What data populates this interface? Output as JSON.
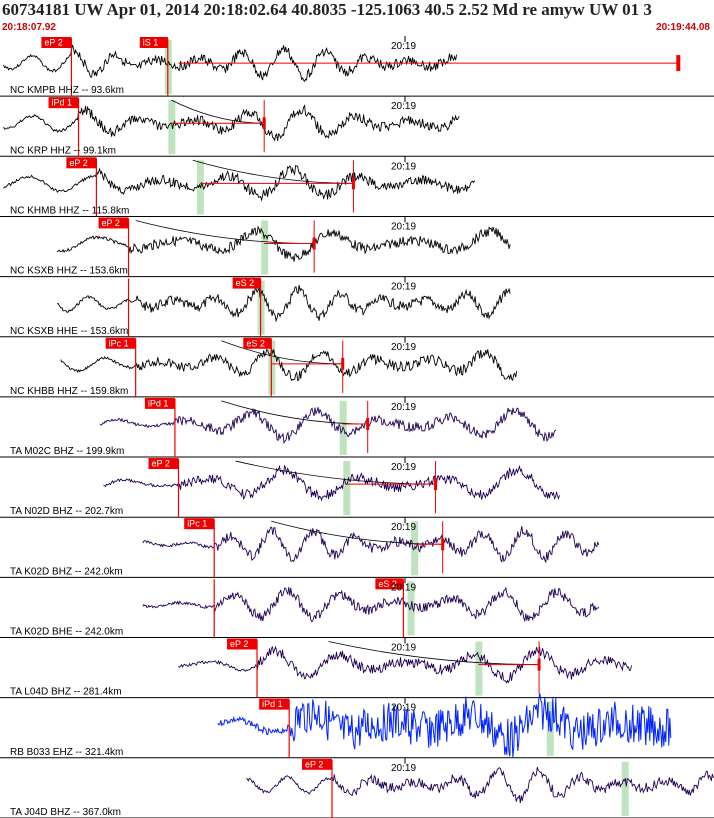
{
  "header": {
    "title": "60734181 UW Apr 01, 2014 20:18:02.64   40.8035 -125.1063 40.5 2.52 Md re amyw UW 01   3",
    "start_time": "20:18:07.92",
    "end_time": "20:19:44.08"
  },
  "colors": {
    "pick": "#ee0000",
    "black_trace": "#000000",
    "ta_trace": "#220055",
    "rb_trace": "#0022ff",
    "s_window": "#bfe3bf"
  },
  "chart_data": {
    "type": "line",
    "title": "60734181 UW Apr 01, 2014 20:18:02.64   40.8035 -125.1063 40.5 2.52 Md re amyw UW 01   3",
    "x_range": [
      "20:18:07.92",
      "20:19:44.08"
    ],
    "time_tick": "20:19",
    "series": [
      {
        "label": "NC KMPB HHZ -- 93.6km",
        "color": "black",
        "start": 0.005,
        "end": 0.64,
        "p_pick": "eP 2",
        "p_pos": 0.1,
        "s_pick": "iS 1",
        "s_pos": 0.235,
        "s_window": 0.235,
        "travel_from": 0.12,
        "coda_line": 0.95
      },
      {
        "label": "NC KRP HHZ -- 99.1km",
        "color": "black",
        "start": 0.005,
        "end": 0.645,
        "p_pick": "iPd 1",
        "p_pos": 0.11,
        "s_window": 0.24,
        "coda_pos": 0.37,
        "travel_from": 0.24
      },
      {
        "label": "NC KHMB HHZ -- 115.8km",
        "color": "black",
        "start": 0.005,
        "end": 0.665,
        "p_pick": "eP 2",
        "p_pos": 0.135,
        "s_window": 0.28,
        "coda_pos": 0.495,
        "travel_from": 0.27
      },
      {
        "label": "NC KSXB HHZ -- 153.6km",
        "color": "black",
        "start": 0.08,
        "end": 0.715,
        "p_pick": "eP 2",
        "p_pos": 0.18,
        "s_window": 0.37,
        "coda_pos": 0.44,
        "travel_from": 0.19
      },
      {
        "label": "NC KSXB HHE -- 153.6km",
        "color": "black",
        "start": 0.08,
        "end": 0.715,
        "p_pick": "",
        "p_pos": 0.18,
        "s_pick": "eS 2",
        "s_pos": 0.365,
        "s_window": 0.365
      },
      {
        "label": "NC KHBB HHZ -- 159.8km",
        "color": "black",
        "start": 0.085,
        "end": 0.725,
        "p_pick": "iPc 1",
        "p_pos": 0.19,
        "s_pick": "eS 2",
        "s_pos": 0.38,
        "s_window": 0.38,
        "coda_pos": 0.48,
        "travel_from": 0.31
      },
      {
        "label": "TA M02C BHZ -- 199.9km",
        "color": "ta",
        "start": 0.14,
        "end": 0.78,
        "p_pick": "iPd 1",
        "p_pos": 0.245,
        "s_window": 0.48,
        "coda_pos": 0.515,
        "travel_from": 0.31
      },
      {
        "label": "TA N02D BHZ -- 202.7km",
        "color": "ta",
        "start": 0.145,
        "end": 0.785,
        "p_pick": "eP 2",
        "p_pos": 0.25,
        "s_window": 0.485,
        "coda_pos": 0.61,
        "travel_from": 0.33
      },
      {
        "label": "TA K02D BHZ -- 242.0km",
        "color": "ta",
        "start": 0.2,
        "end": 0.84,
        "p_pick": "iPc 1",
        "p_pos": 0.3,
        "s_window": 0.58,
        "coda_pos": 0.62,
        "travel_from": 0.38
      },
      {
        "label": "TA K02D BHE -- 242.0km",
        "color": "ta",
        "start": 0.2,
        "end": 0.84,
        "p_pick": "",
        "p_pos": 0.3,
        "s_pick": "eS 2",
        "s_pos": 0.565,
        "s_window": 0.575
      },
      {
        "label": "TA L04D BHZ -- 281.4km",
        "color": "ta",
        "start": 0.25,
        "end": 0.885,
        "p_pick": "eP 2",
        "p_pos": 0.36,
        "s_window": 0.67,
        "coda_pos": 0.755,
        "travel_from": 0.46
      },
      {
        "label": "RB B033 EHZ -- 321.4km",
        "color": "rb",
        "start": 0.305,
        "end": 0.94,
        "p_pick": "iPd 1",
        "p_pos": 0.405,
        "s_window": 0.77
      },
      {
        "label": "TA J04D BHZ -- 367.0km",
        "color": "ta",
        "start": 0.345,
        "end": 1.0,
        "p_pick": "eP 2",
        "p_pos": 0.465,
        "s_window": 0.875
      }
    ]
  }
}
